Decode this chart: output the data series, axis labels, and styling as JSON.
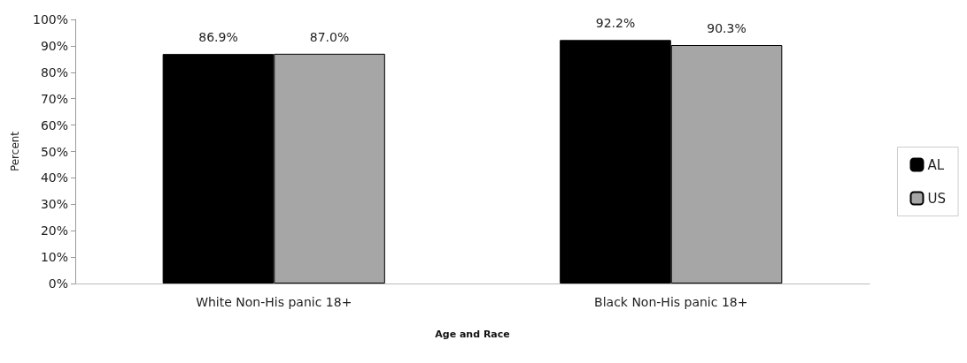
{
  "chart_data": {
    "type": "bar",
    "xlabel": "Age and Race",
    "ylabel": "Percent",
    "categories": [
      "White Non-His panic 18+",
      "Black Non-His panic 18+"
    ],
    "series": [
      {
        "name": "AL",
        "color": "#000000",
        "values": [
          86.9,
          92.2
        ],
        "value_labels": [
          "86.9%",
          "92.2%"
        ]
      },
      {
        "name": "US",
        "color": "#a6a6a6",
        "values": [
          87.0,
          90.3
        ],
        "value_labels": [
          "87.0%",
          "90.3%"
        ]
      }
    ],
    "ylim": [
      0,
      100
    ],
    "yticks": [
      {
        "value": 0,
        "label": "0%"
      },
      {
        "value": 10,
        "label": "10%"
      },
      {
        "value": 20,
        "label": "20%"
      },
      {
        "value": 30,
        "label": "30%"
      },
      {
        "value": 40,
        "label": "40%"
      },
      {
        "value": 50,
        "label": "50%"
      },
      {
        "value": 60,
        "label": "60%"
      },
      {
        "value": 70,
        "label": "70%"
      },
      {
        "value": 80,
        "label": "80%"
      },
      {
        "value": 90,
        "label": "90%"
      },
      {
        "value": 100,
        "label": "100%"
      }
    ],
    "grid": false,
    "legend": "right"
  }
}
